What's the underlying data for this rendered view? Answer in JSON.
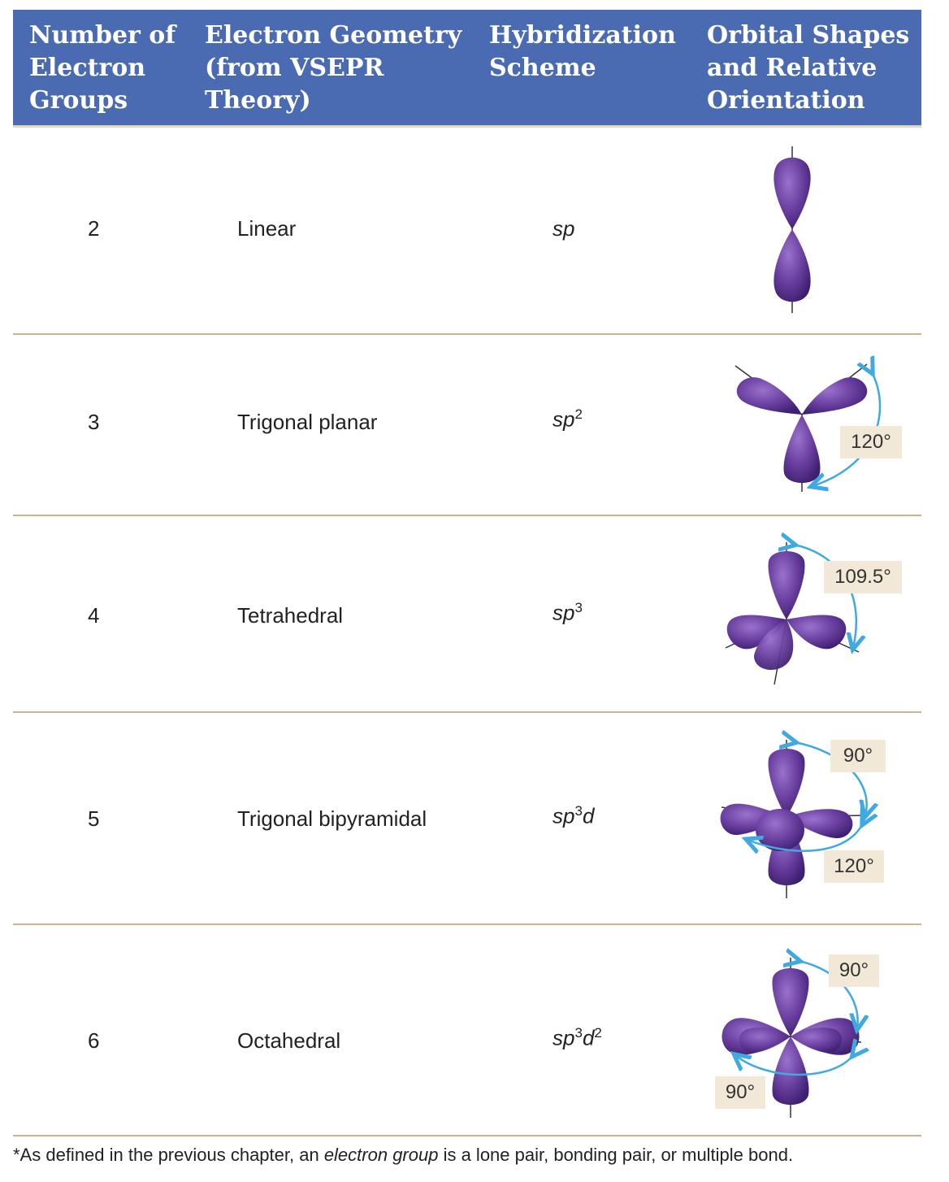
{
  "header": {
    "col1": "Number of\nElectron\nGroups",
    "col2": "Electron Geometry\n(from VSEPR\nTheory)",
    "col3": "Hybridization\nScheme",
    "col4": "Orbital Shapes\nand Relative\nOrientation"
  },
  "rows": [
    {
      "groups": "2",
      "geometry": "Linear",
      "hyb_base": "sp",
      "hyb_sup": "",
      "hyb_suffix": "",
      "hyb_sup2": ""
    },
    {
      "groups": "3",
      "geometry": "Trigonal planar",
      "hyb_base": "sp",
      "hyb_sup": "2",
      "hyb_suffix": "",
      "hyb_sup2": "",
      "angles": [
        "120°"
      ]
    },
    {
      "groups": "4",
      "geometry": "Tetrahedral",
      "hyb_base": "sp",
      "hyb_sup": "3",
      "hyb_suffix": "",
      "hyb_sup2": "",
      "angles": [
        "109.5°"
      ]
    },
    {
      "groups": "5",
      "geometry": "Trigonal bipyramidal",
      "hyb_base": "sp",
      "hyb_sup": "3",
      "hyb_suffix": "d",
      "hyb_sup2": "",
      "angles": [
        "90°",
        "120°"
      ]
    },
    {
      "groups": "6",
      "geometry": "Octahedral",
      "hyb_base": "sp",
      "hyb_sup": "3",
      "hyb_suffix": "d",
      "hyb_sup2": "2",
      "angles": [
        "90°",
        "90°"
      ]
    }
  ],
  "footnote": {
    "prefix": "*As defined in the previous chapter, an ",
    "term": "electron group",
    "suffix": " is a lone pair, bonding pair, or multiple bond."
  },
  "colors": {
    "header_bg": "#4a6bb2",
    "orbital": "#6a3fa0",
    "arrow": "#3fa9e0",
    "angle_bg": "#f1e8d7",
    "rule": "#c9b48e"
  }
}
